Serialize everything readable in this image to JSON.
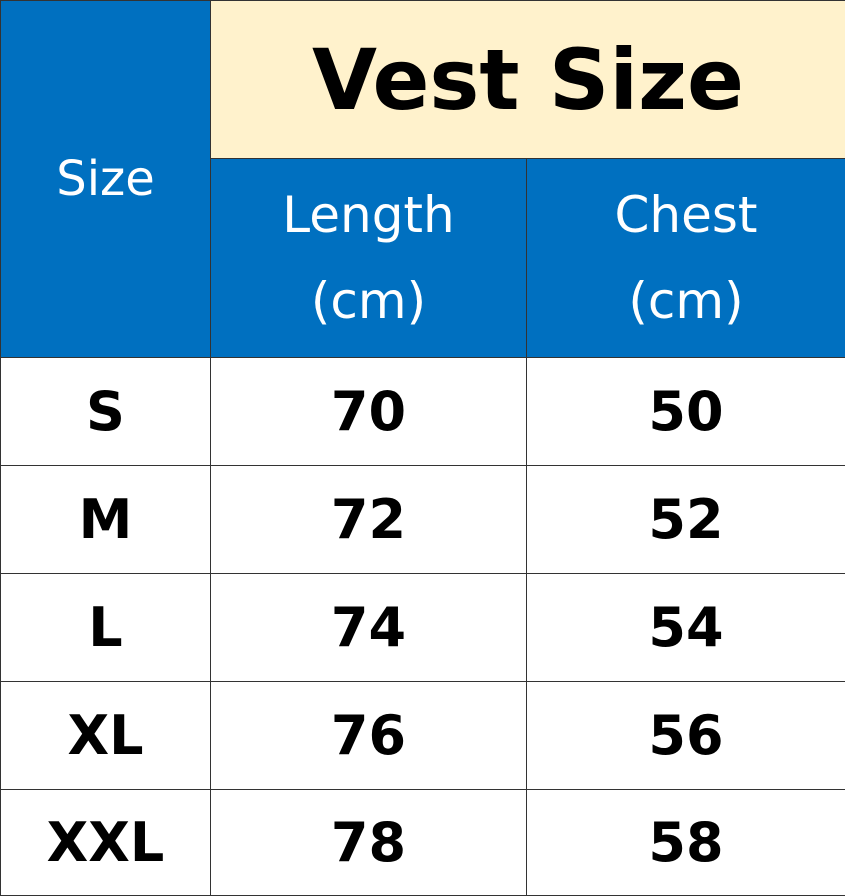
{
  "table": {
    "title": "Vest Size",
    "size_header": "Size",
    "columns": [
      {
        "line1": "Length",
        "line2": "(cm)"
      },
      {
        "line1": "Chest",
        "line2": "(cm)"
      }
    ],
    "rows": [
      {
        "size": "S",
        "length": "70",
        "chest": "50"
      },
      {
        "size": "M",
        "length": "72",
        "chest": "52"
      },
      {
        "size": "L",
        "length": "74",
        "chest": "54"
      },
      {
        "size": "XL",
        "length": "76",
        "chest": "56"
      },
      {
        "size": "XXL",
        "length": "78",
        "chest": "58"
      }
    ],
    "colors": {
      "header_blue": "#0070C0",
      "title_cream": "#FFF2CC"
    }
  }
}
